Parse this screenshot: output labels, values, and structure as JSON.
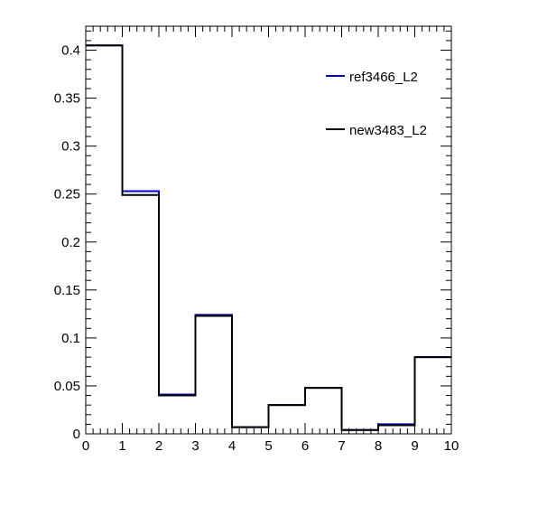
{
  "chart_data": {
    "type": "step",
    "xlim": [
      0,
      10
    ],
    "ylim": [
      0,
      0.425
    ],
    "x_ticks": [
      "0",
      "1",
      "2",
      "3",
      "4",
      "5",
      "6",
      "7",
      "8",
      "9",
      "10"
    ],
    "y_ticks": [
      "0",
      "0.05",
      "0.1",
      "0.15",
      "0.2",
      "0.25",
      "0.3",
      "0.35",
      "0.4"
    ],
    "bin_edges": [
      0,
      1,
      2,
      3,
      4,
      5,
      6,
      7,
      8,
      9,
      10
    ],
    "series": [
      {
        "name": "ref3466_L2",
        "color": "#0000cc",
        "values": [
          0.405,
          0.253,
          0.041,
          0.124,
          0.007,
          0.03,
          0.048,
          0.004,
          0.01,
          0.08
        ]
      },
      {
        "name": "new3483_L2",
        "color": "#000000",
        "values": [
          0.405,
          0.249,
          0.04,
          0.123,
          0.007,
          0.03,
          0.048,
          0.004,
          0.009,
          0.08
        ]
      }
    ],
    "legend": {
      "position": "top-right",
      "entries": [
        "ref3466_L2",
        "new3483_L2"
      ]
    },
    "grid": false
  }
}
